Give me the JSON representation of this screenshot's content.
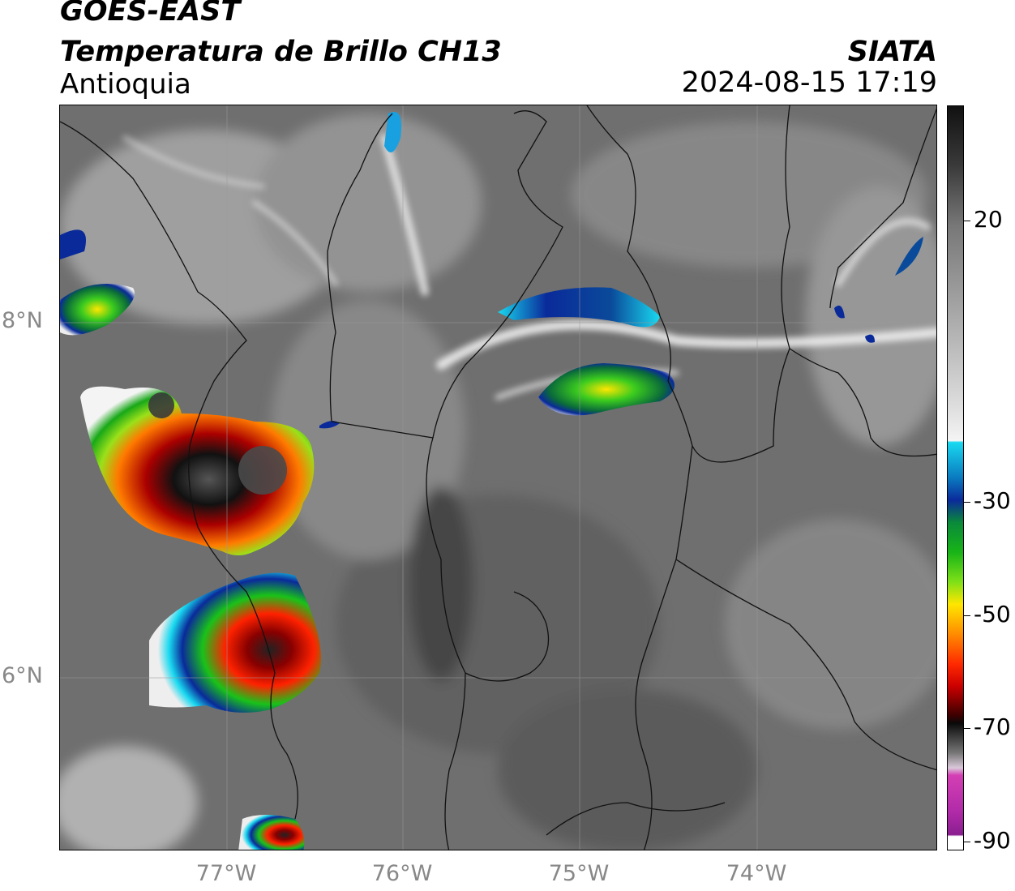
{
  "header": {
    "satellite": "GOES-EAST",
    "product": "Temperatura de Brillo CH13",
    "region": "Antioquia",
    "organization": "SIATA",
    "timestamp": "2024-08-15 17:19"
  },
  "map": {
    "lat_labels": [
      "8°N",
      "6°N"
    ],
    "lon_labels": [
      "77°W",
      "76°W",
      "75°W",
      "74°W"
    ],
    "background_color": "#6e6e6e"
  },
  "colorbar": {
    "ticks": [
      "20",
      "-30",
      "-50",
      "-70",
      "-90"
    ],
    "colors": {
      "top": "#111111",
      "white": "#f4f4f4",
      "cyan": "#19d9f0",
      "blue": "#0a2a9a",
      "green": "#18b418",
      "yellow": "#ffe600",
      "orange": "#ff8c00",
      "red": "#cc0000",
      "black": "#0a0a0a",
      "magenta": "#d43fb4",
      "purple": "#8a1e8f"
    }
  }
}
